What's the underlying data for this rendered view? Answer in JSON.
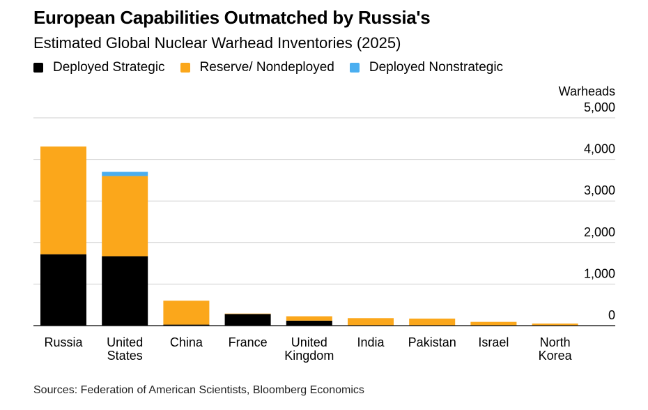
{
  "chart_data": {
    "type": "bar",
    "stacked": true,
    "title": "European Capabilities Outmatched by Russia's",
    "subtitle": "Estimated Global Nuclear Warhead Inventories (2025)",
    "ylabel": "Warheads",
    "ylim": [
      0,
      5000
    ],
    "yticks": [
      "0",
      "1,000",
      "2,000",
      "3,000",
      "4,000",
      "5,000"
    ],
    "ytick_values": [
      0,
      1000,
      2000,
      3000,
      4000,
      5000
    ],
    "grid": true,
    "legend_position": "top-left",
    "categories": [
      [
        "Russia"
      ],
      [
        "United",
        "States"
      ],
      [
        "China"
      ],
      [
        "France"
      ],
      [
        "United",
        "Kingdom"
      ],
      [
        "India"
      ],
      [
        "Pakistan"
      ],
      [
        "Israel"
      ],
      [
        "North",
        "Korea"
      ]
    ],
    "series": [
      {
        "name": "Deployed Strategic",
        "color": "#000000",
        "values": [
          1718,
          1670,
          24,
          280,
          120,
          0,
          0,
          0,
          0
        ]
      },
      {
        "name": "Reserve/ Nondeployed",
        "color": "#fba71b",
        "values": [
          2591,
          1930,
          576,
          10,
          105,
          180,
          170,
          90,
          50
        ]
      },
      {
        "name": "Deployed Nonstrategic",
        "color": "#4aaef0",
        "values": [
          0,
          100,
          0,
          0,
          0,
          0,
          0,
          0,
          0
        ]
      }
    ]
  },
  "footer": {
    "source": "Sources: Federation of American Scientists, Bloomberg Economics"
  }
}
